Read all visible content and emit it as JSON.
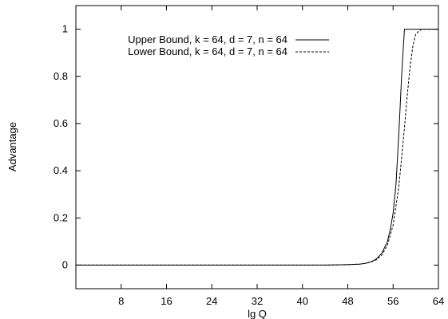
{
  "chart_data": {
    "type": "line",
    "title": "",
    "xlabel": "lg Q",
    "ylabel": "Advantage",
    "xlim": [
      0,
      64
    ],
    "ylim": [
      -0.1,
      1.1
    ],
    "xticks": [
      8,
      16,
      24,
      32,
      40,
      48,
      56,
      64
    ],
    "yticks": [
      0,
      0.2,
      0.4,
      0.6,
      0.8,
      1
    ],
    "ytick_labels": [
      "0",
      "0.2",
      "0.4",
      "0.6",
      "0.8",
      "1"
    ],
    "grid": false,
    "legend": "top-left",
    "series": [
      {
        "name": "Upper Bound, k = 64, d = 7, n = 64",
        "style": "solid",
        "color": "#000000",
        "points": [
          [
            0,
            0
          ],
          [
            40,
            0
          ],
          [
            44,
            0
          ],
          [
            46,
            0.001
          ],
          [
            48,
            0.002
          ],
          [
            50,
            0.004
          ],
          [
            51,
            0.007
          ],
          [
            52,
            0.013
          ],
          [
            53,
            0.025
          ],
          [
            54,
            0.05
          ],
          [
            55,
            0.1
          ],
          [
            55.5,
            0.15
          ],
          [
            56,
            0.22
          ],
          [
            56.5,
            0.34
          ],
          [
            57,
            0.55
          ],
          [
            57.5,
            0.8
          ],
          [
            58,
            1
          ],
          [
            60,
            1
          ],
          [
            64,
            1
          ]
        ]
      },
      {
        "name": "Lower Bound, k = 64, d = 7, n = 64",
        "style": "dashed",
        "color": "#000000",
        "points": [
          [
            0,
            0
          ],
          [
            40,
            0
          ],
          [
            44,
            0
          ],
          [
            46,
            0.001
          ],
          [
            48,
            0.002
          ],
          [
            50,
            0.004
          ],
          [
            51,
            0.007
          ],
          [
            52,
            0.012
          ],
          [
            53,
            0.022
          ],
          [
            54,
            0.042
          ],
          [
            55,
            0.085
          ],
          [
            56,
            0.17
          ],
          [
            57,
            0.33
          ],
          [
            58,
            0.58
          ],
          [
            58.5,
            0.72
          ],
          [
            59,
            0.84
          ],
          [
            59.5,
            0.93
          ],
          [
            60,
            0.98
          ],
          [
            61,
            1
          ],
          [
            64,
            1
          ]
        ]
      }
    ]
  }
}
